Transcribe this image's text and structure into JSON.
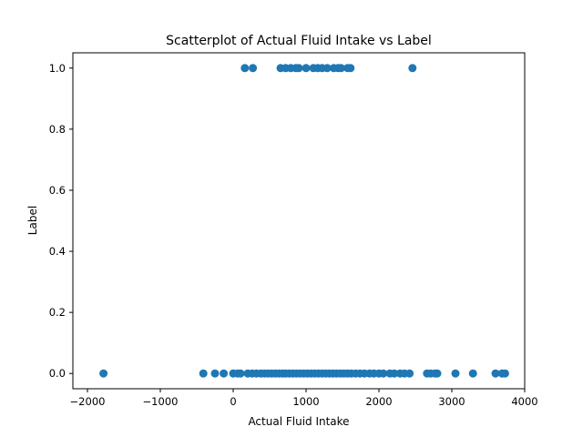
{
  "chart_data": {
    "type": "scatter",
    "title": "Scatterplot of Actual Fluid Intake vs Label",
    "xlabel": "Actual Fluid Intake",
    "ylabel": "Label",
    "xlim": [
      -2200,
      4000
    ],
    "ylim": [
      -0.05,
      1.05
    ],
    "xticks": [
      -2000,
      -1000,
      0,
      1000,
      2000,
      3000,
      4000
    ],
    "xtick_labels": [
      "−2000",
      "−1000",
      "0",
      "1000",
      "2000",
      "3000",
      "4000"
    ],
    "yticks": [
      0.0,
      0.2,
      0.4,
      0.6,
      0.8,
      1.0
    ],
    "ytick_labels": [
      "0.0",
      "0.2",
      "0.4",
      "0.6",
      "0.8",
      "1.0"
    ],
    "grid": false,
    "marker_color": "#1f77b4",
    "points": [
      {
        "x": 160,
        "y": 1
      },
      {
        "x": 270,
        "y": 1
      },
      {
        "x": 650,
        "y": 1
      },
      {
        "x": 720,
        "y": 1
      },
      {
        "x": 790,
        "y": 1
      },
      {
        "x": 860,
        "y": 1
      },
      {
        "x": 900,
        "y": 1
      },
      {
        "x": 1000,
        "y": 1
      },
      {
        "x": 1100,
        "y": 1
      },
      {
        "x": 1160,
        "y": 1
      },
      {
        "x": 1220,
        "y": 1
      },
      {
        "x": 1290,
        "y": 1
      },
      {
        "x": 1380,
        "y": 1
      },
      {
        "x": 1440,
        "y": 1
      },
      {
        "x": 1480,
        "y": 1
      },
      {
        "x": 1570,
        "y": 1
      },
      {
        "x": 1610,
        "y": 1
      },
      {
        "x": 2460,
        "y": 1
      },
      {
        "x": -1780,
        "y": 0
      },
      {
        "x": -410,
        "y": 0
      },
      {
        "x": -250,
        "y": 0
      },
      {
        "x": -130,
        "y": 0
      },
      {
        "x": 0,
        "y": 0
      },
      {
        "x": 60,
        "y": 0
      },
      {
        "x": 100,
        "y": 0
      },
      {
        "x": 200,
        "y": 0
      },
      {
        "x": 260,
        "y": 0
      },
      {
        "x": 320,
        "y": 0
      },
      {
        "x": 380,
        "y": 0
      },
      {
        "x": 430,
        "y": 0
      },
      {
        "x": 480,
        "y": 0
      },
      {
        "x": 530,
        "y": 0
      },
      {
        "x": 580,
        "y": 0
      },
      {
        "x": 630,
        "y": 0
      },
      {
        "x": 680,
        "y": 0
      },
      {
        "x": 720,
        "y": 0
      },
      {
        "x": 770,
        "y": 0
      },
      {
        "x": 820,
        "y": 0
      },
      {
        "x": 870,
        "y": 0
      },
      {
        "x": 920,
        "y": 0
      },
      {
        "x": 970,
        "y": 0
      },
      {
        "x": 1020,
        "y": 0
      },
      {
        "x": 1070,
        "y": 0
      },
      {
        "x": 1120,
        "y": 0
      },
      {
        "x": 1170,
        "y": 0
      },
      {
        "x": 1220,
        "y": 0
      },
      {
        "x": 1270,
        "y": 0
      },
      {
        "x": 1320,
        "y": 0
      },
      {
        "x": 1370,
        "y": 0
      },
      {
        "x": 1420,
        "y": 0
      },
      {
        "x": 1470,
        "y": 0
      },
      {
        "x": 1520,
        "y": 0
      },
      {
        "x": 1570,
        "y": 0
      },
      {
        "x": 1620,
        "y": 0
      },
      {
        "x": 1680,
        "y": 0
      },
      {
        "x": 1740,
        "y": 0
      },
      {
        "x": 1800,
        "y": 0
      },
      {
        "x": 1870,
        "y": 0
      },
      {
        "x": 1930,
        "y": 0
      },
      {
        "x": 2000,
        "y": 0
      },
      {
        "x": 2060,
        "y": 0
      },
      {
        "x": 2150,
        "y": 0
      },
      {
        "x": 2210,
        "y": 0
      },
      {
        "x": 2290,
        "y": 0
      },
      {
        "x": 2350,
        "y": 0
      },
      {
        "x": 2420,
        "y": 0
      },
      {
        "x": 2660,
        "y": 0
      },
      {
        "x": 2710,
        "y": 0
      },
      {
        "x": 2770,
        "y": 0
      },
      {
        "x": 2800,
        "y": 0
      },
      {
        "x": 3050,
        "y": 0
      },
      {
        "x": 3290,
        "y": 0
      },
      {
        "x": 3600,
        "y": 0
      },
      {
        "x": 3690,
        "y": 0
      },
      {
        "x": 3730,
        "y": 0
      }
    ]
  }
}
